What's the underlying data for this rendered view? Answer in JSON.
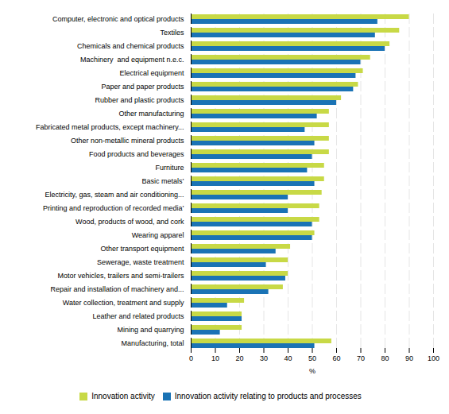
{
  "chart_data": {
    "type": "bar",
    "orientation": "horizontal",
    "categories": [
      "Computer, electronic and optical products",
      "Textiles",
      "Chemicals and chemical products",
      "Machinery  and equipment n.e.c.",
      "Electrical equipment",
      "Paper and paper products",
      "Rubber and plastic products",
      "Other manufacturing",
      "Fabricated metal products, except machinery...",
      "Other non-metallic mineral products",
      "Food products and beverages",
      "Furniture",
      "Basic metals’",
      "Electricity, gas, steam and air conditioning...",
      "Printing and reproduction of recorded media’",
      "Wood, products of wood, and cork",
      "Wearing apparel",
      "Other transport equipment",
      "Sewerage, waste treatment",
      "Motor vehicles, trailers and semi-trailers",
      "Repair and installation of machinery and...",
      "Water collection, treatment and supply",
      "Leather and related products",
      "Mining and quarrying",
      "Manufacturing, total"
    ],
    "series": [
      {
        "name": "Innovation activity",
        "color": "#c8d946",
        "values": [
          90,
          86,
          82,
          74,
          71,
          69,
          62,
          57,
          57,
          57,
          57,
          55,
          55,
          54,
          53,
          53,
          51,
          41,
          40,
          40,
          38,
          22,
          21,
          21,
          58
        ]
      },
      {
        "name": "Innovation activity relating to products and processes",
        "color": "#1a73b5",
        "values": [
          77,
          76,
          80,
          70,
          68,
          67,
          60,
          52,
          47,
          51,
          50,
          48,
          51,
          40,
          40,
          50,
          50,
          35,
          31,
          39,
          32,
          15,
          21,
          12,
          51
        ]
      }
    ],
    "xlabel": "%",
    "xlim": [
      0,
      100
    ],
    "xticks": [
      0,
      10,
      20,
      30,
      40,
      50,
      60,
      70,
      80,
      90,
      100
    ],
    "grid": "x",
    "legend": "bottom"
  }
}
